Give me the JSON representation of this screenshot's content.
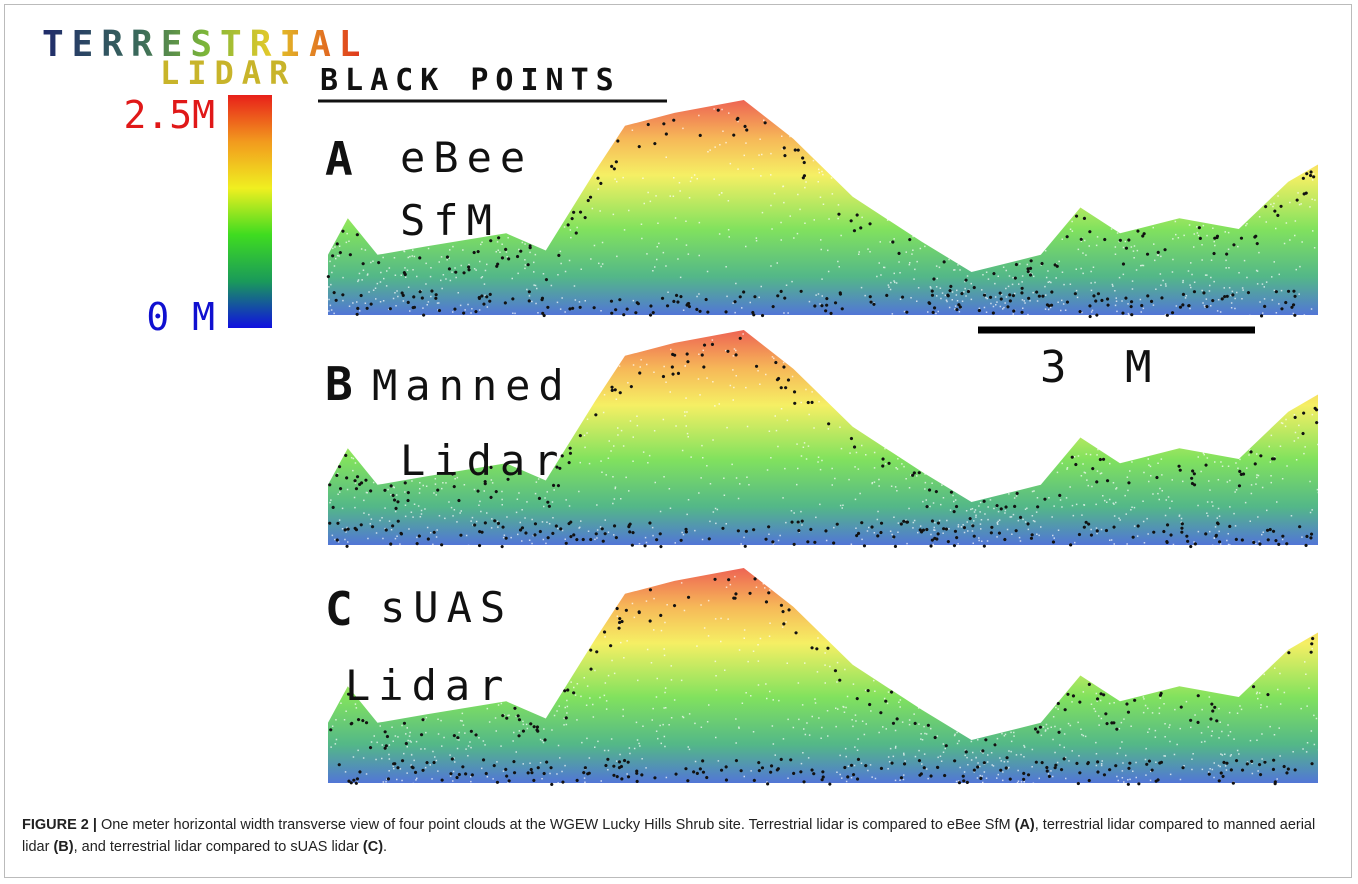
{
  "legend": {
    "title_line1": "TERRESTRIAL",
    "title_line2": "LIDAR",
    "max_label": "2.5M",
    "min_label": "0 M"
  },
  "black_points_heading": "BLACK POINTS",
  "panels": [
    {
      "letter": "A",
      "lines": [
        "eBee",
        "SfM"
      ]
    },
    {
      "letter": "B",
      "lines": [
        "Manned",
        "Lidar"
      ]
    },
    {
      "letter": "C",
      "lines": [
        "sUAS",
        "Lidar"
      ]
    }
  ],
  "scale_bar": "3 M",
  "caption": {
    "label": "FIGURE 2 |",
    "parts": [
      "One meter horizontal width transverse view of four point clouds at the WGEW Lucky Hills Shrub site. Terrestrial lidar is compared to eBee SfM ",
      "(A)",
      ", terrestrial lidar compared to manned aerial lidar ",
      "(B)",
      ", and terrestrial lidar compared to sUAS lidar ",
      "(C)",
      "."
    ]
  }
}
